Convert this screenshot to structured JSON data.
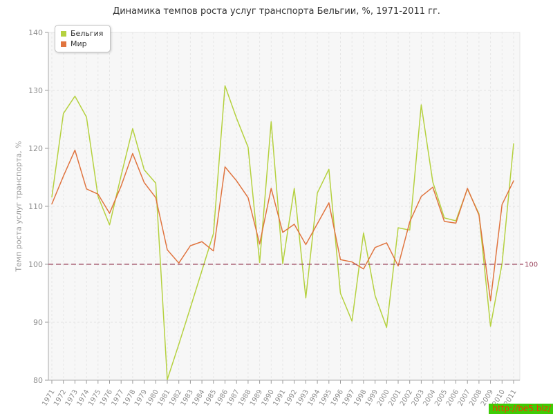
{
  "watermark": "http://be5.biz/",
  "chart_data": {
    "type": "line",
    "title": "Динамика темпов роста услуг транспорта Бельгии, %, 1971-2011 гг.",
    "xlabel": "",
    "ylabel": "Темп роста услуг транспорта, %",
    "ylim": [
      80,
      140
    ],
    "yticks": [
      80,
      90,
      100,
      110,
      120,
      130,
      140
    ],
    "grid": true,
    "legend_position": "top-left",
    "refline": {
      "value": 100,
      "label": "100",
      "color": "#9d4860"
    },
    "x": [
      1971,
      1972,
      1973,
      1974,
      1975,
      1976,
      1977,
      1978,
      1979,
      1980,
      1981,
      1982,
      1983,
      1984,
      1985,
      1986,
      1987,
      1988,
      1989,
      1990,
      1991,
      1992,
      1993,
      1994,
      1995,
      1996,
      1997,
      1998,
      1999,
      2000,
      2001,
      2002,
      2003,
      2004,
      2005,
      2006,
      2007,
      2008,
      2009,
      2010,
      2011
    ],
    "series": [
      {
        "name": "Бельгия",
        "color": "#b5d13f",
        "values": [
          111.6,
          126.0,
          129.0,
          125.4,
          111.7,
          106.8,
          115.3,
          123.4,
          116.3,
          114.0,
          80.1,
          86.2,
          92.5,
          98.9,
          105.3,
          130.8,
          125.2,
          120.2,
          100.3,
          124.6,
          100.1,
          113.1,
          94.2,
          112.3,
          116.4,
          95.0,
          90.2,
          105.4,
          94.6,
          89.1,
          106.3,
          105.9,
          127.5,
          114.2,
          108.0,
          107.5,
          113.0,
          108.7,
          89.3,
          100.1,
          120.8
        ]
      },
      {
        "name": "Мир",
        "color": "#e0743f",
        "values": [
          110.4,
          115.2,
          119.7,
          113.0,
          112.1,
          108.8,
          113.5,
          119.1,
          114.1,
          111.5,
          102.5,
          100.2,
          103.2,
          103.9,
          102.3,
          116.8,
          114.4,
          111.5,
          103.5,
          113.1,
          105.5,
          106.9,
          103.4,
          107.0,
          110.6,
          100.8,
          100.4,
          99.2,
          102.9,
          103.7,
          99.7,
          107.3,
          111.7,
          113.3,
          107.4,
          107.1,
          113.1,
          108.5,
          93.7,
          110.3,
          114.4
        ]
      }
    ]
  },
  "style": {
    "plot_bg": "#f7f7f7",
    "grid_color": "#e3e3e3",
    "axis_color": "#aaaaaa",
    "tick_color": "#999999",
    "label_color": "#8e8e8e"
  }
}
